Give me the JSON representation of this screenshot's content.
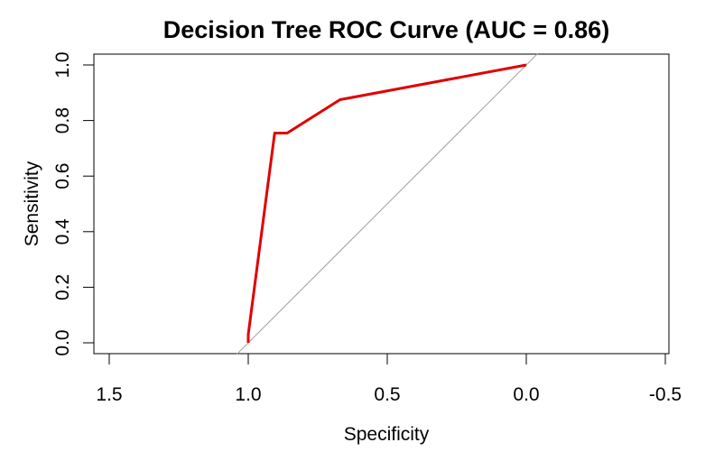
{
  "chart_data": {
    "type": "line",
    "title": "Decision Tree ROC Curve (AUC = 0.86)",
    "xlabel": "Specificity",
    "ylabel": "Sensitivity",
    "xlim": [
      1.5,
      -0.5
    ],
    "ylim": [
      0.0,
      1.0
    ],
    "x_ticks": [
      "1.5",
      "1.0",
      "0.5",
      "0.0",
      "-0.5"
    ],
    "y_ticks": [
      "0.0",
      "0.2",
      "0.4",
      "0.6",
      "0.8",
      "1.0"
    ],
    "grid": false,
    "legend": "none",
    "reference_line": {
      "x": [
        1.0,
        0.0
      ],
      "y": [
        0.0,
        1.0
      ],
      "color": "#a0a0a0"
    },
    "series": [
      {
        "color": "#e00000",
        "x": [
          1.0,
          1.0,
          0.905,
          0.86,
          0.67,
          0.0
        ],
        "y": [
          0.0,
          0.03,
          0.755,
          0.755,
          0.875,
          1.0
        ]
      }
    ]
  }
}
